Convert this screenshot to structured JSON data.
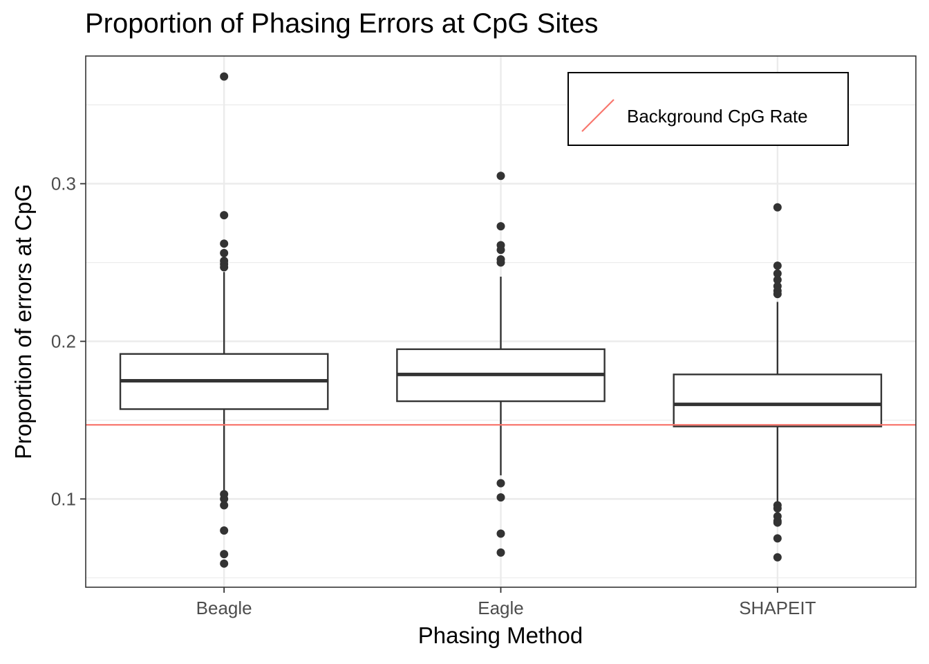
{
  "chart_data": {
    "type": "boxplot",
    "title": "Proportion of Phasing Errors at CpG Sites",
    "xlabel": "Phasing Method",
    "ylabel": "Proportion of errors at CpG",
    "categories": [
      "Beagle",
      "Eagle",
      "SHAPEIT"
    ],
    "ylim": [
      0.044,
      0.381
    ],
    "yticks": [
      0.1,
      0.2,
      0.3
    ],
    "ytick_labels": [
      "0.1",
      "0.2",
      "0.3"
    ],
    "grid": true,
    "legend": {
      "position": "top-right",
      "entries": [
        "Background CpG Rate"
      ]
    },
    "reference_line": {
      "name": "Background CpG Rate",
      "y": 0.147,
      "color": "#F8766D"
    },
    "boxes": [
      {
        "category": "Beagle",
        "lower_whisker": 0.105,
        "q1": 0.157,
        "median": 0.175,
        "q3": 0.192,
        "upper_whisker": 0.244,
        "outliers": [
          0.368,
          0.28,
          0.262,
          0.256,
          0.251,
          0.249,
          0.247,
          0.103,
          0.1,
          0.096,
          0.08,
          0.065,
          0.059
        ]
      },
      {
        "category": "Eagle",
        "lower_whisker": 0.115,
        "q1": 0.162,
        "median": 0.179,
        "q3": 0.195,
        "upper_whisker": 0.241,
        "outliers": [
          0.305,
          0.273,
          0.261,
          0.258,
          0.252,
          0.25,
          0.11,
          0.101,
          0.078,
          0.066
        ]
      },
      {
        "category": "SHAPEIT",
        "lower_whisker": 0.097,
        "q1": 0.146,
        "median": 0.16,
        "q3": 0.179,
        "upper_whisker": 0.225,
        "outliers": [
          0.285,
          0.248,
          0.243,
          0.239,
          0.235,
          0.232,
          0.23,
          0.096,
          0.094,
          0.089,
          0.086,
          0.085,
          0.075,
          0.063
        ]
      }
    ],
    "colors": {
      "box_stroke": "#333333",
      "point": "#333333",
      "grid": "#EBEBEB",
      "panel_border": "#333333",
      "reference": "#F8766D"
    }
  }
}
